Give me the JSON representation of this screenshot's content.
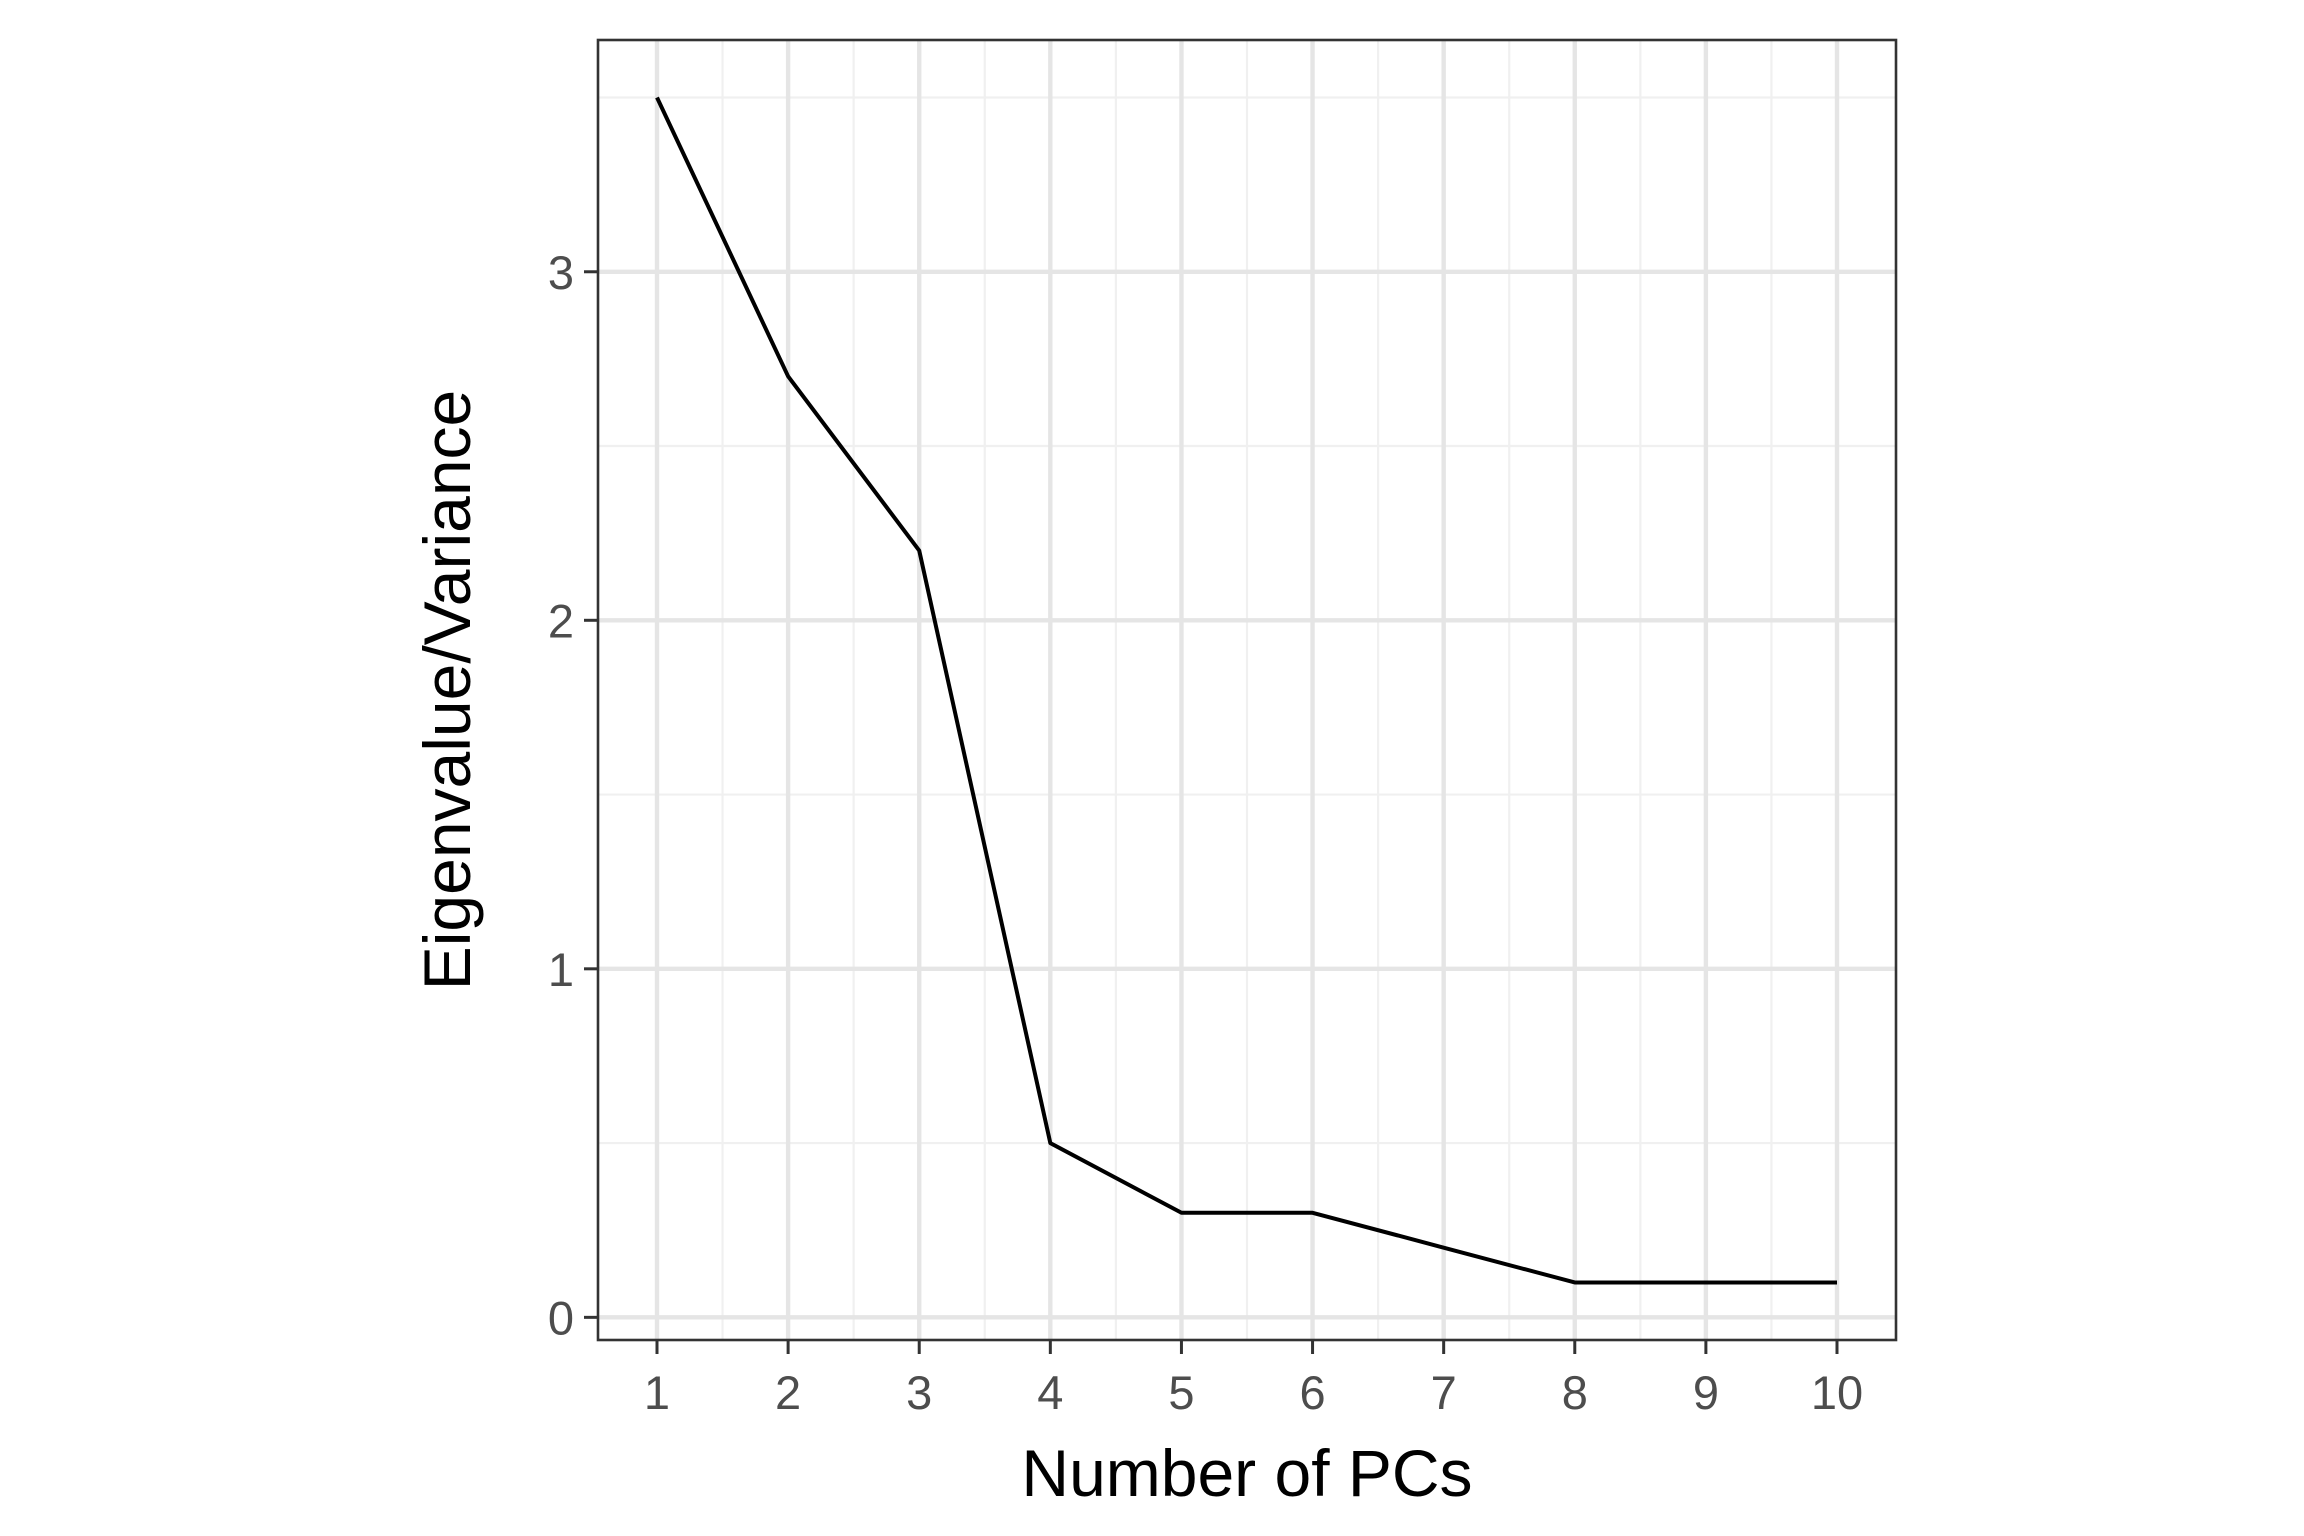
{
  "chart_data": {
    "type": "line",
    "title": "",
    "xlabel": "Number of PCs",
    "ylabel": "Eigenvalue/Variance",
    "x": [
      1,
      2,
      3,
      4,
      5,
      6,
      7,
      8,
      9,
      10
    ],
    "series": [
      {
        "values": [
          3.5,
          2.7,
          2.2,
          0.5,
          0.3,
          0.3,
          0.2,
          0.1,
          0.1,
          0.1
        ]
      }
    ],
    "xticks": [
      1,
      2,
      3,
      4,
      5,
      6,
      7,
      8,
      9,
      10
    ],
    "xtick_labels": [
      "1",
      "2",
      "3",
      "4",
      "5",
      "6",
      "7",
      "8",
      "9",
      "10"
    ],
    "yticks": [
      0,
      1,
      2,
      3
    ],
    "ytick_labels": [
      "0",
      "1",
      "2",
      "3"
    ],
    "xlim": [
      0.55,
      10.45
    ],
    "ylim": [
      -0.065,
      3.665
    ],
    "grid": true,
    "legend": "none",
    "theme": "bw",
    "colors": {
      "line": "#000000",
      "panel_border": "#333333",
      "grid_major": "#e5e5e5",
      "grid_minor": "#f0f0f0",
      "tick_label": "#4d4d4d",
      "axis_title": "#000000"
    }
  }
}
